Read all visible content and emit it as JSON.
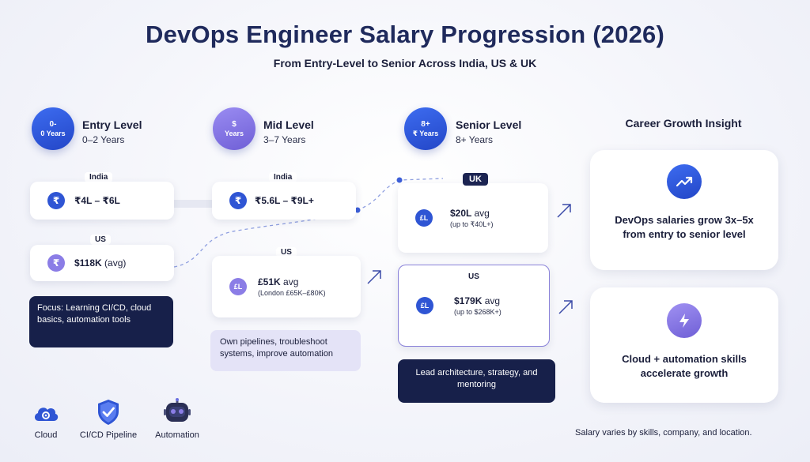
{
  "title": "DevOps Engineer Salary Progression (2026)",
  "subtitle": "From Entry-Level to Senior Across India, US & UK",
  "levels": [
    {
      "circle_top": "0-",
      "circle_bottom": "0 Years",
      "name": "Entry Level",
      "years": "0–2 Years"
    },
    {
      "circle_top": "$",
      "circle_bottom": "Years",
      "name": "Mid Level",
      "years": "3–7 Years"
    },
    {
      "circle_top": "8+",
      "circle_bottom": "₹ Years",
      "name": "Senior Level",
      "years": "8+ Years"
    }
  ],
  "entry": {
    "india_tag": "India",
    "india_symbol": "₹",
    "india_amount": "₹4L – ₹6L",
    "us_tag": "US",
    "us_symbol": "₹",
    "us_amount": "$118K",
    "us_note": "(avg)",
    "focus": "Focus: Learning CI/CD, cloud basics, automation tools"
  },
  "mid": {
    "india_tag": "India",
    "india_symbol": "₹",
    "india_amount": "₹5.6L – ₹9L+",
    "us_tag": "US",
    "us_symbol": "£L",
    "us_amount": "£51K",
    "us_amount_suffix": "avg",
    "us_sub": "(London £65K–£80K)",
    "focus": "Own pipelines, troubleshoot systems, improve automation"
  },
  "senior": {
    "uk_tag": "UK",
    "uk_symbol": "£L",
    "uk_amount": "$20L",
    "uk_amount_suffix": "avg",
    "uk_sub": "(up to ₹40L+)",
    "us_tag": "US",
    "us_symbol": "£L",
    "us_amount": "$179K",
    "us_amount_suffix": "avg",
    "us_sub": "(up to $268K+)",
    "focus": "Lead architecture, strategy, and mentoring"
  },
  "insight": {
    "title": "Career Growth Insight",
    "card1": "DevOps salaries grow 3x–5x from entry to senior level",
    "card1_icon": "trend-up-icon",
    "card2": "Cloud + automation skills accelerate growth",
    "card2_icon": "lightning-icon"
  },
  "bottom_icons": [
    {
      "label": "Cloud",
      "icon": "cloud-gear-icon"
    },
    {
      "label": "CI/CD Pipeline",
      "icon": "shield-check-icon"
    },
    {
      "label": "Automation",
      "icon": "robot-icon"
    }
  ],
  "footnote": "Salary varies by skills, company, and location.",
  "colors": {
    "navy": "#17204a",
    "blue": "#2f55d4",
    "purple": "#8b7de6",
    "lavender": "#e4e3f7",
    "title": "#1f2a5c"
  }
}
